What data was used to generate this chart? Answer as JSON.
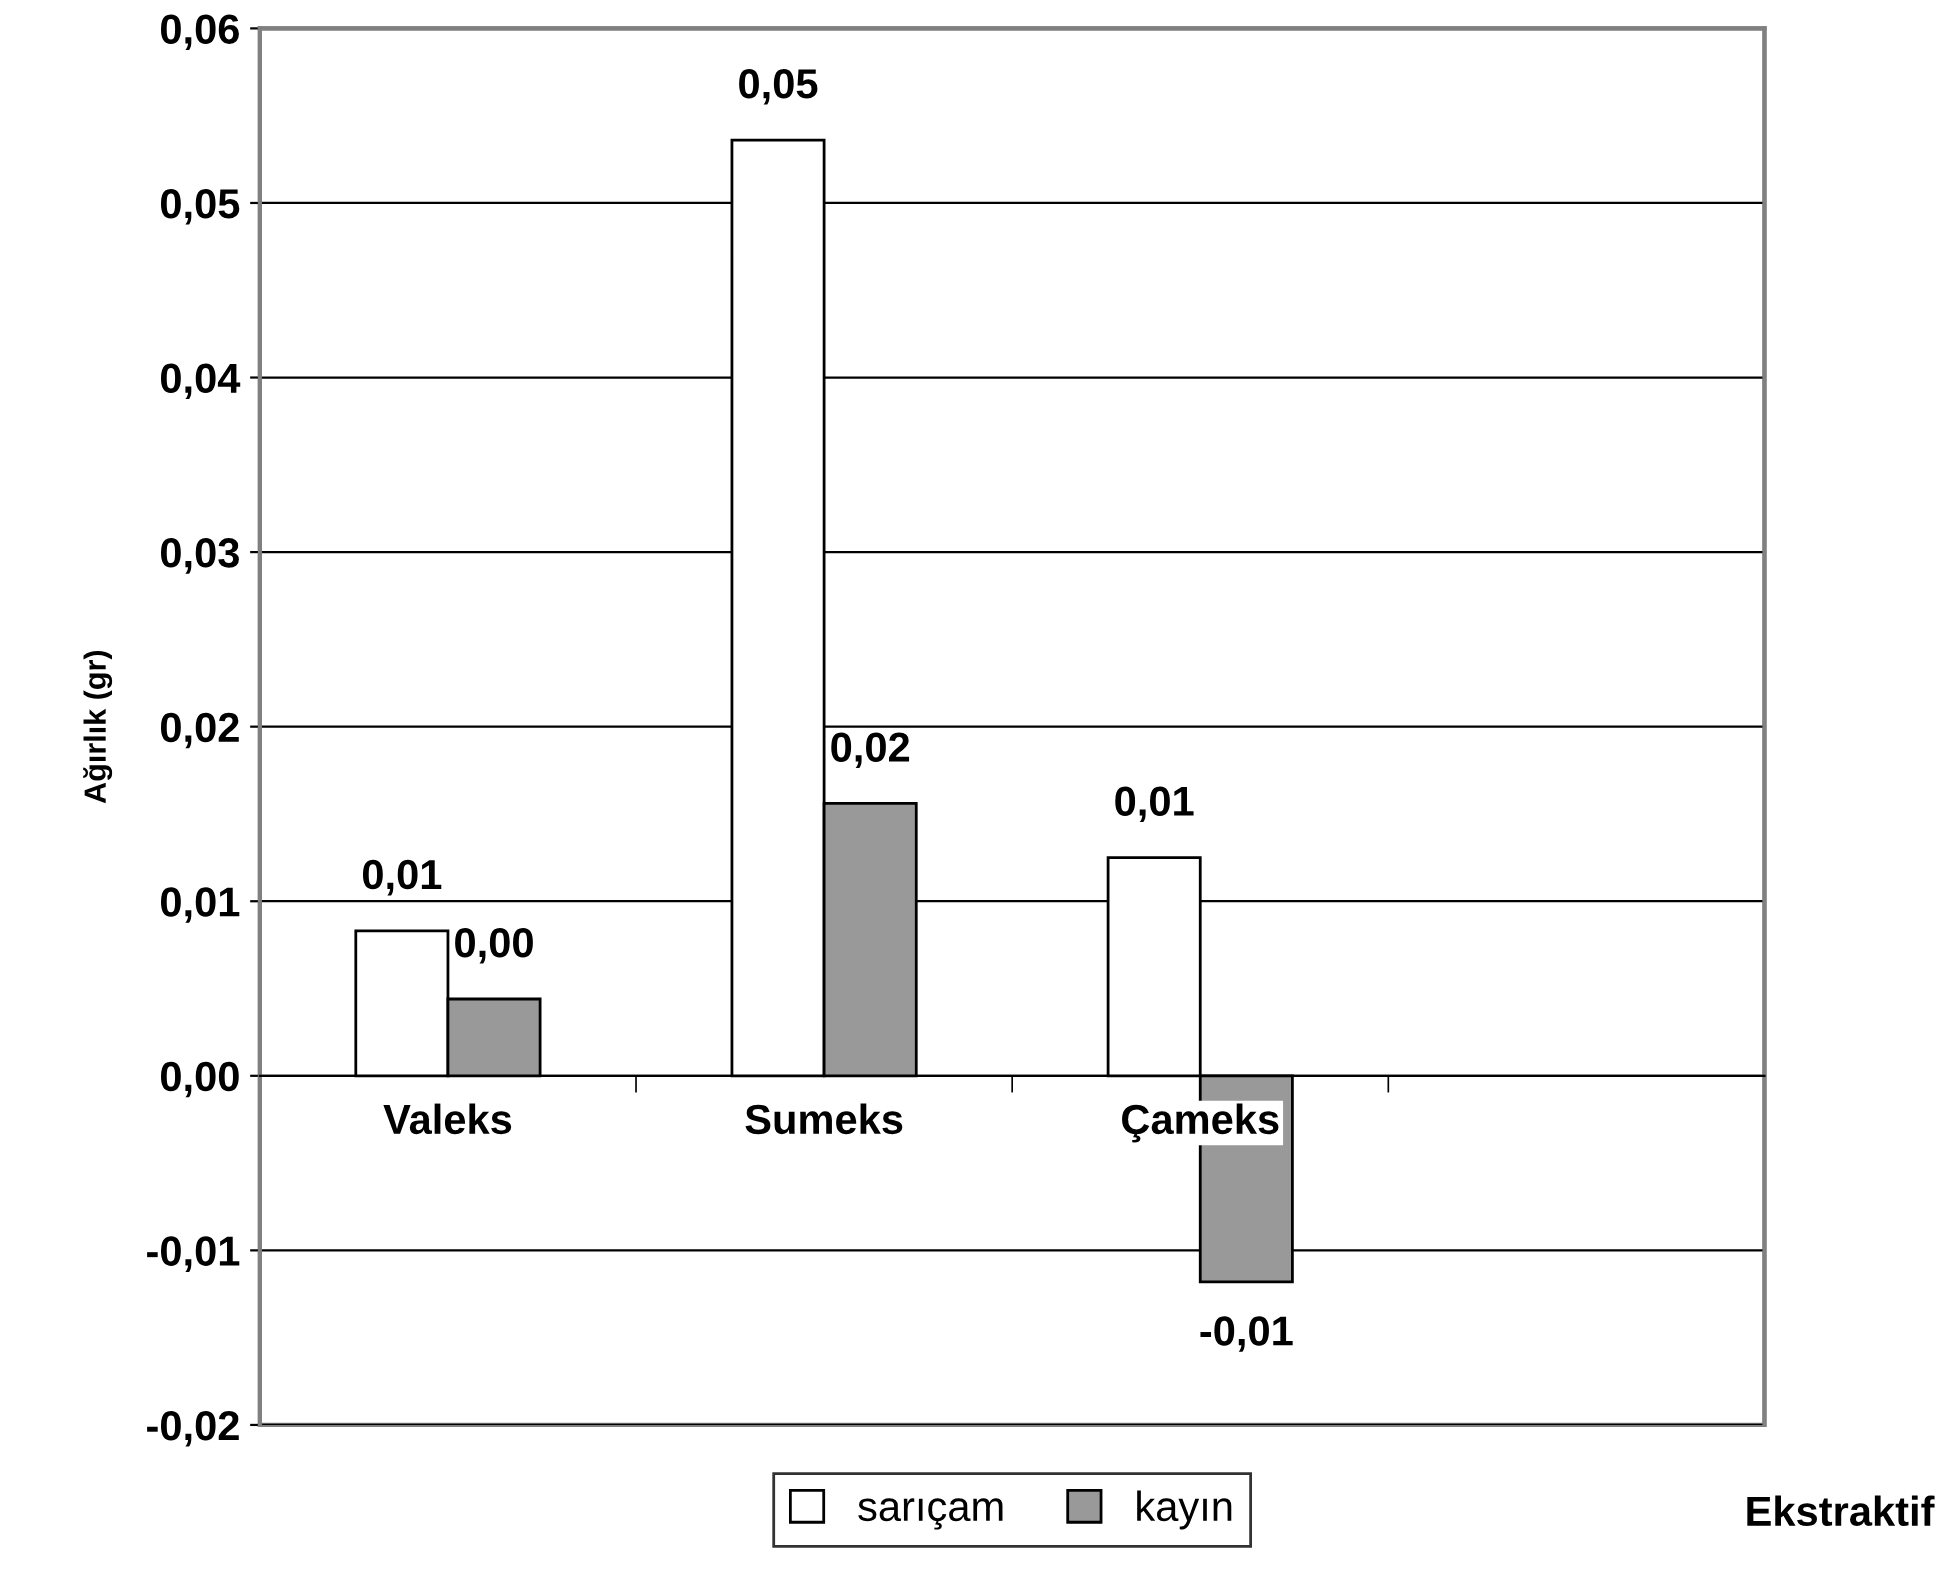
{
  "chart_data": {
    "type": "bar",
    "ylabel": "Ağırlık (gr)",
    "xlabel": "Ekstraktif",
    "categories": [
      "Valeks",
      "Sumeks",
      "Çameks",
      null
    ],
    "series": [
      {
        "name": "sarıçam",
        "color": "#ffffff",
        "values": [
          0.0083,
          0.0536,
          0.0125,
          null
        ],
        "value_labels": [
          "0,01",
          "0,05",
          "0,01",
          null
        ]
      },
      {
        "name": "kayın",
        "color": "#999999",
        "values": [
          0.0044,
          0.0156,
          -0.0118,
          null
        ],
        "value_labels": [
          "0,00",
          "0,02",
          "-0,01",
          null
        ]
      }
    ],
    "ylim": [
      -0.02,
      0.06
    ],
    "yticks": [
      {
        "value": -0.02,
        "label": "-0,02"
      },
      {
        "value": -0.01,
        "label": "-0,01"
      },
      {
        "value": 0,
        "label": "0,00"
      },
      {
        "value": 0.01,
        "label": "0,01"
      },
      {
        "value": 0.02,
        "label": "0,02"
      },
      {
        "value": 0.03,
        "label": "0,03"
      },
      {
        "value": 0.04,
        "label": "0,04"
      },
      {
        "value": 0.05,
        "label": "0,05"
      },
      {
        "value": 0.06,
        "label": "0,06"
      }
    ],
    "grid": "y",
    "legend": "bottom"
  }
}
